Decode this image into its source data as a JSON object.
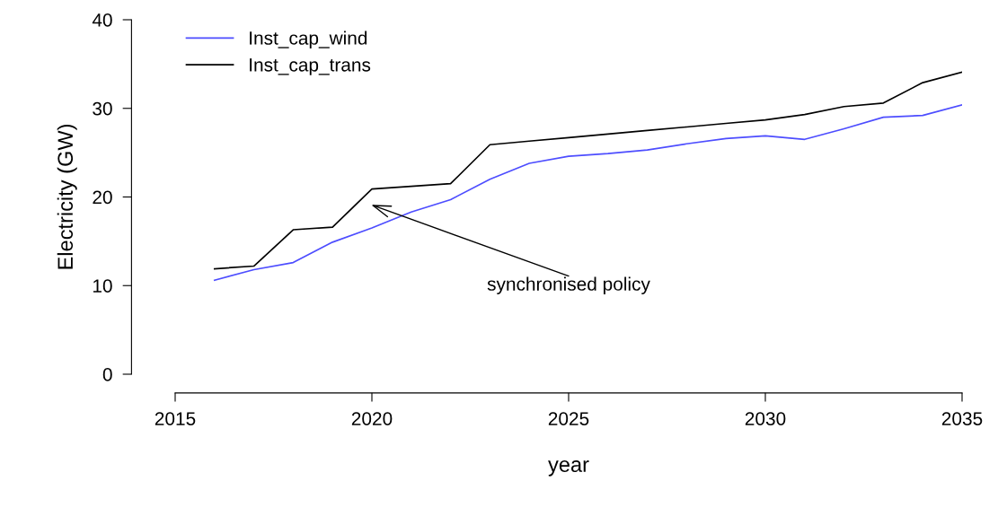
{
  "chart_data": {
    "type": "line",
    "xlabel": "year",
    "ylabel": "Electricity (GW)",
    "x": [
      2016,
      2017,
      2018,
      2019,
      2020,
      2021,
      2022,
      2023,
      2024,
      2025,
      2026,
      2027,
      2028,
      2029,
      2030,
      2031,
      2032,
      2033,
      2034,
      2035
    ],
    "series": [
      {
        "name": "Inst_cap_wind",
        "color": "#4d4dff",
        "values": [
          10.6,
          11.8,
          12.6,
          14.9,
          16.5,
          18.3,
          19.7,
          22.0,
          23.8,
          24.6,
          24.9,
          25.3,
          26.0,
          26.6,
          26.9,
          26.5,
          27.7,
          29.0,
          29.2,
          30.4
        ]
      },
      {
        "name": "Inst_cap_trans",
        "color": "#000000",
        "values": [
          11.9,
          12.2,
          16.3,
          16.6,
          20.9,
          21.2,
          21.5,
          25.9,
          26.3,
          26.7,
          27.1,
          27.5,
          27.9,
          28.3,
          28.7,
          29.3,
          30.2,
          30.6,
          32.9,
          34.1
        ]
      }
    ],
    "xlim": [
      2015,
      2035
    ],
    "ylim": [
      0,
      40
    ],
    "xticks": [
      2015,
      2020,
      2025,
      2030,
      2035
    ],
    "yticks": [
      0,
      10,
      20,
      30,
      40
    ],
    "annotations": [
      "synchronised policy"
    ],
    "legend": "top left",
    "grid": false
  }
}
